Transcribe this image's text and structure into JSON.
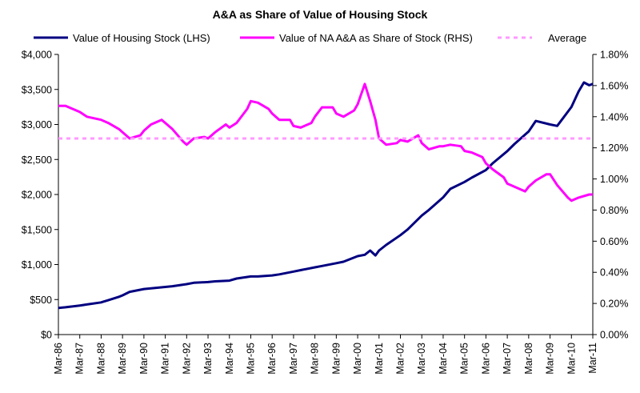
{
  "chart_data": {
    "type": "line",
    "title": "A&A as Share of Value of Housing Stock",
    "xlabel": "",
    "ylabel_left": "",
    "ylabel_right": "",
    "x_range": [
      1986.167,
      2011.167
    ],
    "ylim_left": [
      0,
      4000
    ],
    "ylim_right": [
      0,
      1.8
    ],
    "grid": false,
    "legend_position": "top",
    "x_tick_labels": [
      "Mar-86",
      "Mar-87",
      "Mar-88",
      "Mar-89",
      "Mar-90",
      "Mar-91",
      "Mar-92",
      "Mar-93",
      "Mar-94",
      "Mar-95",
      "Mar-96",
      "Mar-97",
      "Mar-98",
      "Mar-99",
      "Mar-00",
      "Mar-01",
      "Mar-02",
      "Mar-03",
      "Mar-04",
      "Mar-05",
      "Mar-06",
      "Mar-07",
      "Mar-08",
      "Mar-09",
      "Mar-10",
      "Mar-11"
    ],
    "x_tick_values": [
      1986.167,
      1987.167,
      1988.167,
      1989.167,
      1990.167,
      1991.167,
      1992.167,
      1993.167,
      1994.167,
      1995.167,
      1996.167,
      1997.167,
      1998.167,
      1999.167,
      2000.167,
      2001.167,
      2002.167,
      2003.167,
      2004.167,
      2005.167,
      2006.167,
      2007.167,
      2008.167,
      2009.167,
      2010.167,
      2011.167
    ],
    "y_left_ticks": [
      0,
      500,
      1000,
      1500,
      2000,
      2500,
      3000,
      3500,
      4000
    ],
    "y_left_tick_labels": [
      "$0",
      "$500",
      "$1,000",
      "$1,500",
      "$2,000",
      "$2,500",
      "$3,000",
      "$3,500",
      "$4,000"
    ],
    "y_right_ticks": [
      0,
      0.2,
      0.4,
      0.6,
      0.8,
      1.0,
      1.2,
      1.4,
      1.6,
      1.8
    ],
    "y_right_tick_labels": [
      "0.00%",
      "0.20%",
      "0.40%",
      "0.60%",
      "0.80%",
      "1.00%",
      "1.20%",
      "1.40%",
      "1.60%",
      "1.80%"
    ],
    "series": [
      {
        "name": "Value of Housing Stock (LHS)",
        "axis": "left",
        "color": "#000080",
        "x": [
          1986.167,
          1986.5,
          1987.167,
          1987.5,
          1988.167,
          1988.5,
          1989.0,
          1989.167,
          1989.5,
          1990.167,
          1990.5,
          1991.167,
          1991.5,
          1992.167,
          1992.5,
          1993.167,
          1993.5,
          1994.167,
          1994.5,
          1995.167,
          1995.5,
          1996.167,
          1996.5,
          1997.167,
          1997.5,
          1998.167,
          1998.5,
          1999.167,
          1999.5,
          2000.167,
          2000.5,
          2000.75,
          2001.0,
          2001.167,
          2001.5,
          2002.167,
          2002.5,
          2003.167,
          2003.5,
          2004.167,
          2004.5,
          2005.167,
          2005.5,
          2006.167,
          2006.5,
          2007.167,
          2007.5,
          2008.167,
          2008.5,
          2009.167,
          2009.5,
          2010.167,
          2010.5,
          2010.75,
          2011.0,
          2011.167
        ],
        "y": [
          380,
          390,
          415,
          430,
          460,
          490,
          540,
          560,
          610,
          650,
          660,
          680,
          690,
          720,
          740,
          750,
          760,
          770,
          800,
          830,
          830,
          845,
          860,
          900,
          920,
          960,
          980,
          1020,
          1040,
          1120,
          1140,
          1200,
          1130,
          1200,
          1280,
          1420,
          1500,
          1700,
          1780,
          1960,
          2080,
          2180,
          2240,
          2350,
          2450,
          2620,
          2720,
          2900,
          3050,
          3000,
          2980,
          3250,
          3470,
          3600,
          3560,
          3580
        ]
      },
      {
        "name": "Value of NA A&A as Share of Stock (RHS)",
        "axis": "right",
        "color": "#ff00ff",
        "x": [
          1986.167,
          1986.5,
          1987.167,
          1987.5,
          1988.167,
          1988.5,
          1989.0,
          1989.167,
          1989.5,
          1990.0,
          1990.167,
          1990.5,
          1991.0,
          1991.167,
          1991.5,
          1992.0,
          1992.167,
          1992.5,
          1993.0,
          1993.167,
          1993.5,
          1994.0,
          1994.167,
          1994.5,
          1995.0,
          1995.167,
          1995.5,
          1996.0,
          1996.167,
          1996.5,
          1997.0,
          1997.167,
          1997.5,
          1998.0,
          1998.167,
          1998.5,
          1999.0,
          1999.167,
          1999.5,
          2000.0,
          2000.167,
          2000.5,
          2000.75,
          2001.0,
          2001.167,
          2001.5,
          2002.0,
          2002.167,
          2002.5,
          2003.0,
          2003.167,
          2003.5,
          2004.0,
          2004.167,
          2004.5,
          2005.0,
          2005.167,
          2005.5,
          2006.0,
          2006.167,
          2006.5,
          2007.0,
          2007.167,
          2007.5,
          2008.0,
          2008.167,
          2008.5,
          2009.0,
          2009.167,
          2009.5,
          2010.0,
          2010.167,
          2010.5,
          2011.0,
          2011.167
        ],
        "y": [
          1.47,
          1.47,
          1.43,
          1.4,
          1.38,
          1.36,
          1.32,
          1.3,
          1.26,
          1.28,
          1.31,
          1.35,
          1.38,
          1.36,
          1.32,
          1.24,
          1.22,
          1.26,
          1.27,
          1.26,
          1.3,
          1.35,
          1.33,
          1.36,
          1.45,
          1.5,
          1.49,
          1.45,
          1.42,
          1.38,
          1.38,
          1.34,
          1.33,
          1.36,
          1.4,
          1.46,
          1.46,
          1.42,
          1.4,
          1.44,
          1.48,
          1.61,
          1.5,
          1.38,
          1.26,
          1.22,
          1.23,
          1.25,
          1.24,
          1.28,
          1.23,
          1.19,
          1.21,
          1.21,
          1.22,
          1.21,
          1.18,
          1.17,
          1.14,
          1.1,
          1.06,
          1.01,
          0.97,
          0.95,
          0.92,
          0.95,
          0.99,
          1.03,
          1.03,
          0.96,
          0.88,
          0.86,
          0.88,
          0.9,
          0.9
        ]
      },
      {
        "name": "Average",
        "axis": "right",
        "color": "#ff99ff",
        "dashed": true,
        "x": [
          1986.167,
          2011.167
        ],
        "y": [
          1.26,
          1.26
        ]
      }
    ]
  }
}
